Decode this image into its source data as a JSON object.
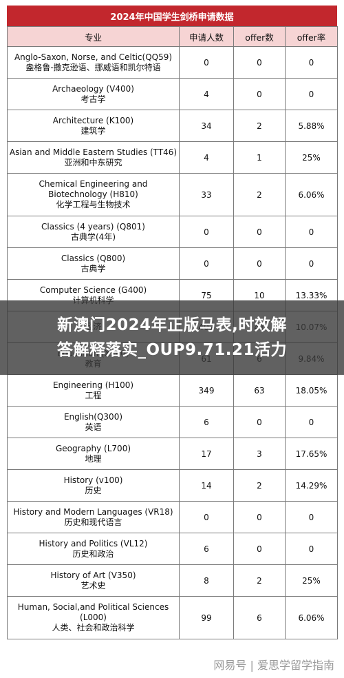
{
  "page_title": "2024年中国学生剑桥申请数据",
  "columns": [
    "专业",
    "申请人数",
    "offer数",
    "offer率"
  ],
  "rows": [
    {
      "en": "Anglo-Saxon, Norse, and Celtic(QQ59)",
      "zh": "盎格鲁-撒克逊语、挪威语和凯尔特语",
      "applicants": "0",
      "offers": "0",
      "rate": "0"
    },
    {
      "en": "Archaeology (V400)",
      "zh": "考古学",
      "applicants": "4",
      "offers": "0",
      "rate": "0"
    },
    {
      "en": "Architecture (K100)",
      "zh": "建筑学",
      "applicants": "34",
      "offers": "2",
      "rate": "5.88%"
    },
    {
      "en": "Asian and Middle Eastern Studies (TT46)",
      "zh": "亚洲和中东研究",
      "applicants": "4",
      "offers": "1",
      "rate": "25%"
    },
    {
      "en": "Chemical Engineering and Biotechnology (H810)",
      "zh": "化学工程与生物技术",
      "applicants": "33",
      "offers": "2",
      "rate": "6.06%"
    },
    {
      "en": "Classics (4 years) (Q801)",
      "zh": "古典学(4年)",
      "applicants": "0",
      "offers": "0",
      "rate": "0"
    },
    {
      "en": "Classics (Q800)",
      "zh": "古典学",
      "applicants": "0",
      "offers": "0",
      "rate": "0"
    },
    {
      "en": "Computer Science (G400)",
      "zh": "计算机科学",
      "applicants": "75",
      "offers": "10",
      "rate": "13.33%"
    },
    {
      "en": "",
      "zh": "经济",
      "applicants": "407",
      "offers": "41",
      "rate": "10.07%"
    },
    {
      "en": "Education (X300)",
      "zh": "教育",
      "applicants": "61",
      "offers": "6",
      "rate": "9.84%"
    },
    {
      "en": "Engineering (H100)",
      "zh": "工程",
      "applicants": "349",
      "offers": "63",
      "rate": "18.05%"
    },
    {
      "en": "English(Q300)",
      "zh": "英语",
      "applicants": "6",
      "offers": "0",
      "rate": "0"
    },
    {
      "en": "Geography (L700)",
      "zh": "地理",
      "applicants": "17",
      "offers": "3",
      "rate": "17.65%"
    },
    {
      "en": "History (v100)",
      "zh": "历史",
      "applicants": "14",
      "offers": "2",
      "rate": "14.29%"
    },
    {
      "en": "History and Modern Languages (VR18)",
      "zh": "历史和现代语言",
      "applicants": "0",
      "offers": "0",
      "rate": "0"
    },
    {
      "en": "History and Politics (VL12)",
      "zh": "历史和政治",
      "applicants": "6",
      "offers": "0",
      "rate": "0"
    },
    {
      "en": "History of Art (V350)",
      "zh": "艺术史",
      "applicants": "8",
      "offers": "2",
      "rate": "25%"
    },
    {
      "en": "Human, Social,and Political Sciences (L000)",
      "zh": "人类、社会和政治科学",
      "applicants": "99",
      "offers": "6",
      "rate": "6.06%"
    }
  ],
  "overlay": {
    "line1": "新澳门2024年正版马表,时效解",
    "line2": "答解释落实_OUP9.71.21活力"
  },
  "watermark": "网易号 | 爱思学留学指南"
}
